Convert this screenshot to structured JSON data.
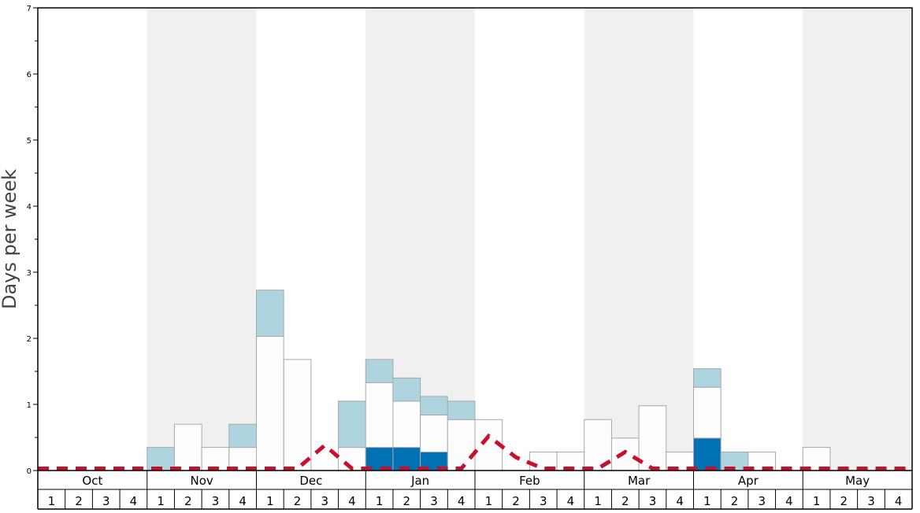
{
  "chart_data": {
    "type": "bar",
    "title": "",
    "ylabel": "Days per week",
    "ylim": [
      0,
      7
    ],
    "yticks": [
      0,
      1,
      2,
      3,
      4,
      5,
      6,
      7
    ],
    "months": [
      "Oct",
      "Nov",
      "Dec",
      "Jan",
      "Feb",
      "Mar",
      "Apr",
      "May"
    ],
    "week_labels": [
      "1",
      "2",
      "3",
      "4"
    ],
    "grid": false,
    "legend": "none",
    "colors": {
      "white": "#fdfdfd",
      "light_blue": "#aed4e0",
      "dark_blue": "#0071b3",
      "shade": "#f0f0f0",
      "line": "#c8102e",
      "bar_stroke": "#a8a8a8"
    },
    "series": [
      {
        "key": "dark",
        "values": [
          0,
          0,
          0,
          0,
          0,
          0,
          0,
          0,
          0,
          0,
          0,
          0,
          0.35,
          0.35,
          0.28,
          0,
          0,
          0,
          0,
          0,
          0,
          0,
          0,
          0,
          0.49,
          0,
          0,
          0,
          0,
          0,
          0,
          0
        ]
      },
      {
        "key": "white",
        "values": [
          0,
          0,
          0,
          0,
          0,
          0.7,
          0.35,
          0.35,
          2.03,
          1.68,
          0,
          0.35,
          0.98,
          0.7,
          0.56,
          0.77,
          0.77,
          0,
          0.28,
          0.28,
          0.77,
          0.49,
          0.98,
          0.28,
          0.77,
          0,
          0.28,
          0,
          0.35,
          0,
          0,
          0
        ]
      },
      {
        "key": "light",
        "values": [
          0,
          0,
          0,
          0,
          0.35,
          0,
          0,
          0.35,
          0.7,
          0,
          0,
          0.7,
          0.35,
          0.35,
          0.28,
          0.28,
          0,
          0,
          0,
          0,
          0,
          0,
          0,
          0,
          0.28,
          0.28,
          0,
          0,
          0,
          0,
          0,
          0
        ]
      }
    ],
    "line": {
      "style": "dashed",
      "values": [
        0.03,
        0.03,
        0.03,
        0.03,
        0.03,
        0.03,
        0.03,
        0.03,
        0.03,
        0.03,
        0.38,
        0.03,
        0.03,
        0.03,
        0.03,
        0.03,
        0.52,
        0.2,
        0.03,
        0.03,
        0.03,
        0.28,
        0.03,
        0.03,
        0.03,
        0.03,
        0.03,
        0.03,
        0.03,
        0.03,
        0.03,
        0.03
      ]
    }
  }
}
